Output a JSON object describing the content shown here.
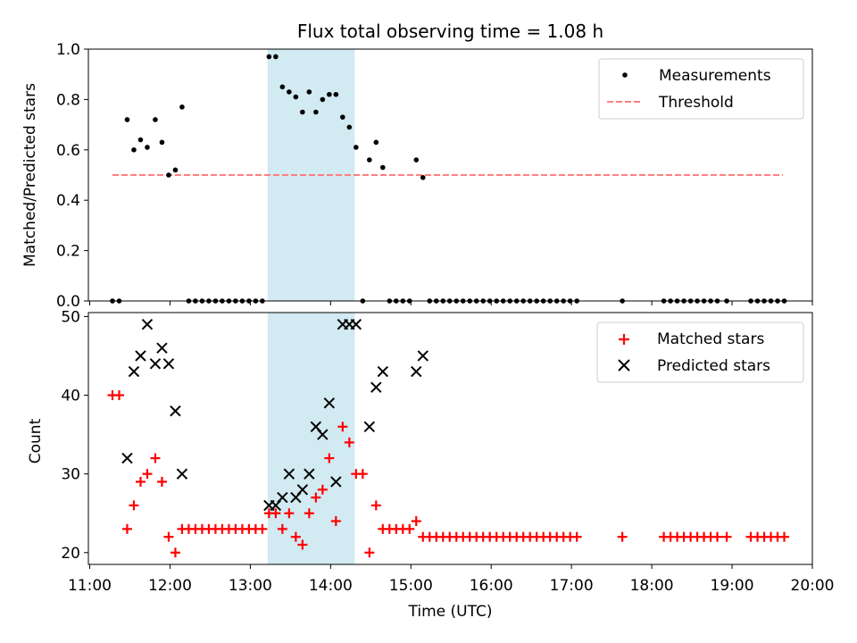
{
  "chart_data": [
    {
      "type": "scatter",
      "title": "Flux total observing time = 1.08 h",
      "xlabel": "",
      "ylabel": "Matched/Predicted stars",
      "ylim": [
        0,
        1.0
      ],
      "yticks": [
        "0.0",
        "0.2",
        "0.4",
        "0.6",
        "0.8",
        "1.0"
      ],
      "highlight_span": {
        "x_start": "13:13",
        "x_end": "14:18",
        "color": "#add8e6"
      },
      "legend": {
        "placement": "top-right",
        "entries": [
          "Measurements",
          "Threshold"
        ]
      },
      "series": [
        {
          "name": "Measurements",
          "marker": "dot",
          "color": "#000000",
          "points": [
            [
              "11:17",
              0
            ],
            [
              "11:22",
              0
            ],
            [
              "11:28",
              0.72
            ],
            [
              "11:33",
              0.6
            ],
            [
              "11:38",
              0.64
            ],
            [
              "11:43",
              0.61
            ],
            [
              "11:49",
              0.72
            ],
            [
              "11:54",
              0.63
            ],
            [
              "11:59",
              0.5
            ],
            [
              "12:04",
              0.52
            ],
            [
              "12:09",
              0.77
            ],
            [
              "12:14",
              0
            ],
            [
              "12:19",
              0
            ],
            [
              "12:24",
              0
            ],
            [
              "12:29",
              0
            ],
            [
              "12:34",
              0
            ],
            [
              "12:39",
              0
            ],
            [
              "12:44",
              0
            ],
            [
              "12:49",
              0
            ],
            [
              "12:54",
              0
            ],
            [
              "12:59",
              0
            ],
            [
              "13:04",
              0
            ],
            [
              "13:09",
              0
            ],
            [
              "13:14",
              0.97
            ],
            [
              "13:19",
              0.97
            ],
            [
              "13:24",
              0.85
            ],
            [
              "13:29",
              0.83
            ],
            [
              "13:34",
              0.81
            ],
            [
              "13:39",
              0.75
            ],
            [
              "13:44",
              0.83
            ],
            [
              "13:49",
              0.75
            ],
            [
              "13:54",
              0.8
            ],
            [
              "13:59",
              0.82
            ],
            [
              "14:04",
              0.82
            ],
            [
              "14:09",
              0.73
            ],
            [
              "14:14",
              0.69
            ],
            [
              "14:19",
              0.61
            ],
            [
              "14:24",
              0
            ],
            [
              "14:29",
              0.56
            ],
            [
              "14:34",
              0.63
            ],
            [
              "14:39",
              0.53
            ],
            [
              "14:44",
              0
            ],
            [
              "14:49",
              0
            ],
            [
              "14:54",
              0
            ],
            [
              "14:59",
              0
            ],
            [
              "15:04",
              0.56
            ],
            [
              "15:09",
              0.49
            ],
            [
              "15:14",
              0
            ],
            [
              "15:19",
              0
            ],
            [
              "15:24",
              0
            ],
            [
              "15:29",
              0
            ],
            [
              "15:34",
              0
            ],
            [
              "15:39",
              0
            ],
            [
              "15:44",
              0
            ],
            [
              "15:49",
              0
            ],
            [
              "15:54",
              0
            ],
            [
              "15:59",
              0
            ],
            [
              "16:04",
              0
            ],
            [
              "16:09",
              0
            ],
            [
              "16:14",
              0
            ],
            [
              "16:19",
              0
            ],
            [
              "16:24",
              0
            ],
            [
              "16:29",
              0
            ],
            [
              "16:34",
              0
            ],
            [
              "16:39",
              0
            ],
            [
              "16:44",
              0
            ],
            [
              "16:49",
              0
            ],
            [
              "16:54",
              0
            ],
            [
              "16:59",
              0
            ],
            [
              "17:04",
              0
            ],
            [
              "17:38",
              0
            ],
            [
              "18:09",
              0
            ],
            [
              "18:14",
              0
            ],
            [
              "18:19",
              0
            ],
            [
              "18:24",
              0
            ],
            [
              "18:29",
              0
            ],
            [
              "18:34",
              0
            ],
            [
              "18:39",
              0
            ],
            [
              "18:44",
              0
            ],
            [
              "18:49",
              0
            ],
            [
              "18:56",
              0
            ],
            [
              "19:14",
              0
            ],
            [
              "19:19",
              0
            ],
            [
              "19:24",
              0
            ],
            [
              "19:29",
              0
            ],
            [
              "19:34",
              0
            ],
            [
              "19:39",
              0
            ]
          ]
        },
        {
          "name": "Threshold",
          "line_style": "dashed",
          "color": "#ff7f7f",
          "points": [
            [
              "11:17",
              0.5
            ],
            [
              "19:38",
              0.5
            ]
          ]
        }
      ]
    },
    {
      "type": "scatter",
      "title": "",
      "xlabel": "Time (UTC)",
      "ylabel": "Count",
      "ylim": [
        18.5,
        50.5
      ],
      "yticks": [
        "20",
        "30",
        "40",
        "50"
      ],
      "xlim": [
        "10:59",
        "20:00"
      ],
      "xticks": [
        "11:00",
        "12:00",
        "13:00",
        "14:00",
        "15:00",
        "16:00",
        "17:00",
        "18:00",
        "19:00",
        "20:00"
      ],
      "highlight_span": {
        "x_start": "13:13",
        "x_end": "14:18",
        "color": "#add8e6"
      },
      "legend": {
        "placement": "top-right",
        "entries": [
          "Matched stars",
          "Predicted stars"
        ]
      },
      "series": [
        {
          "name": "Matched stars",
          "marker": "plus",
          "color": "#ff0000",
          "points": [
            [
              "11:17",
              40
            ],
            [
              "11:22",
              40
            ],
            [
              "11:28",
              23
            ],
            [
              "11:33",
              26
            ],
            [
              "11:38",
              29
            ],
            [
              "11:43",
              30
            ],
            [
              "11:49",
              32
            ],
            [
              "11:54",
              29
            ],
            [
              "11:59",
              22
            ],
            [
              "12:04",
              20
            ],
            [
              "12:09",
              23
            ],
            [
              "12:14",
              23
            ],
            [
              "12:19",
              23
            ],
            [
              "12:24",
              23
            ],
            [
              "12:29",
              23
            ],
            [
              "12:34",
              23
            ],
            [
              "12:39",
              23
            ],
            [
              "12:44",
              23
            ],
            [
              "12:49",
              23
            ],
            [
              "12:54",
              23
            ],
            [
              "12:59",
              23
            ],
            [
              "13:04",
              23
            ],
            [
              "13:09",
              23
            ],
            [
              "13:14",
              25
            ],
            [
              "13:19",
              25
            ],
            [
              "13:24",
              23
            ],
            [
              "13:29",
              25
            ],
            [
              "13:34",
              22
            ],
            [
              "13:39",
              21
            ],
            [
              "13:44",
              25
            ],
            [
              "13:49",
              27
            ],
            [
              "13:54",
              28
            ],
            [
              "13:59",
              32
            ],
            [
              "14:04",
              24
            ],
            [
              "14:09",
              36
            ],
            [
              "14:14",
              34
            ],
            [
              "14:19",
              30
            ],
            [
              "14:24",
              30
            ],
            [
              "14:29",
              20
            ],
            [
              "14:34",
              26
            ],
            [
              "14:39",
              23
            ],
            [
              "14:44",
              23
            ],
            [
              "14:49",
              23
            ],
            [
              "14:54",
              23
            ],
            [
              "14:59",
              23
            ],
            [
              "15:04",
              24
            ],
            [
              "15:09",
              22
            ],
            [
              "15:14",
              22
            ],
            [
              "15:19",
              22
            ],
            [
              "15:24",
              22
            ],
            [
              "15:29",
              22
            ],
            [
              "15:34",
              22
            ],
            [
              "15:39",
              22
            ],
            [
              "15:44",
              22
            ],
            [
              "15:49",
              22
            ],
            [
              "15:54",
              22
            ],
            [
              "15:59",
              22
            ],
            [
              "16:04",
              22
            ],
            [
              "16:09",
              22
            ],
            [
              "16:14",
              22
            ],
            [
              "16:19",
              22
            ],
            [
              "16:24",
              22
            ],
            [
              "16:29",
              22
            ],
            [
              "16:34",
              22
            ],
            [
              "16:39",
              22
            ],
            [
              "16:44",
              22
            ],
            [
              "16:49",
              22
            ],
            [
              "16:54",
              22
            ],
            [
              "16:59",
              22
            ],
            [
              "17:04",
              22
            ],
            [
              "17:38",
              22
            ],
            [
              "18:09",
              22
            ],
            [
              "18:14",
              22
            ],
            [
              "18:19",
              22
            ],
            [
              "18:24",
              22
            ],
            [
              "18:29",
              22
            ],
            [
              "18:34",
              22
            ],
            [
              "18:39",
              22
            ],
            [
              "18:44",
              22
            ],
            [
              "18:49",
              22
            ],
            [
              "18:56",
              22
            ],
            [
              "19:14",
              22
            ],
            [
              "19:19",
              22
            ],
            [
              "19:24",
              22
            ],
            [
              "19:29",
              22
            ],
            [
              "19:34",
              22
            ],
            [
              "19:39",
              22
            ]
          ]
        },
        {
          "name": "Predicted stars",
          "marker": "x",
          "color": "#000000",
          "points": [
            [
              "11:28",
              32
            ],
            [
              "11:33",
              43
            ],
            [
              "11:38",
              45
            ],
            [
              "11:43",
              49
            ],
            [
              "11:49",
              44
            ],
            [
              "11:54",
              46
            ],
            [
              "11:59",
              44
            ],
            [
              "12:04",
              38
            ],
            [
              "12:09",
              30
            ],
            [
              "13:14",
              26
            ],
            [
              "13:19",
              26
            ],
            [
              "13:24",
              27
            ],
            [
              "13:29",
              30
            ],
            [
              "13:34",
              27
            ],
            [
              "13:39",
              28
            ],
            [
              "13:44",
              30
            ],
            [
              "13:49",
              36
            ],
            [
              "13:54",
              35
            ],
            [
              "13:59",
              39
            ],
            [
              "14:04",
              29
            ],
            [
              "14:09",
              49
            ],
            [
              "14:14",
              49
            ],
            [
              "14:19",
              49
            ],
            [
              "14:29",
              36
            ],
            [
              "14:34",
              41
            ],
            [
              "14:39",
              43
            ],
            [
              "15:04",
              43
            ],
            [
              "15:09",
              45
            ]
          ]
        }
      ]
    }
  ]
}
